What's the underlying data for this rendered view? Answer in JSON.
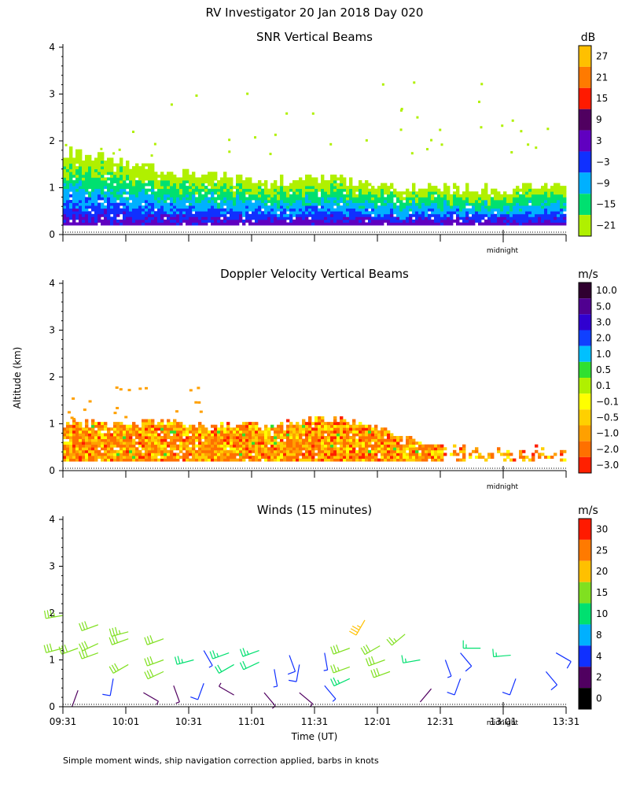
{
  "title": "RV Investigator  20 Jan 2018 Day 020",
  "ylabel": "Altitude (km)",
  "xlabel": "Time (UT)",
  "footnote": "Simple moment winds, ship navigation correction applied, barbs in knots",
  "midnight_label": "midnight",
  "x_ticks": [
    "09:31",
    "10:01",
    "10:31",
    "11:01",
    "11:31",
    "12:01",
    "12:31",
    "13:01",
    "13:31"
  ],
  "chart_data": [
    {
      "type": "heatmap",
      "title": "SNR Vertical Beams",
      "unit": "dB",
      "xlabel": "Time (UT)",
      "ylabel": "Altitude (km)",
      "ylim": [
        0,
        4
      ],
      "y_ticks": [
        0,
        1,
        2,
        3,
        4
      ],
      "colorbar": {
        "labels": [
          "27",
          "21",
          "15",
          "9",
          "3",
          "−3",
          "−9",
          "−15",
          "−21"
        ],
        "colors": [
          "#ffc000",
          "#ff7a00",
          "#ff1a00",
          "#500060",
          "#6000c0",
          "#1030ff",
          "#00b0ff",
          "#00e070",
          "#b0f000"
        ]
      },
      "profile": {
        "x": [
          0,
          0.1,
          0.2,
          0.3,
          0.4,
          0.5,
          0.6,
          0.7,
          0.8,
          0.9,
          1.0
        ],
        "top_km": [
          1.75,
          1.55,
          1.35,
          1.2,
          1.05,
          1.2,
          1.05,
          0.95,
          0.95,
          0.95,
          1.0
        ],
        "layers": [
          {
            "fraction": 0.0,
            "band": "-21"
          },
          {
            "fraction": 0.25,
            "band": "-15"
          },
          {
            "fraction": 0.45,
            "band": "-9"
          },
          {
            "fraction": 0.65,
            "band": "-3"
          },
          {
            "fraction": 0.85,
            "band": "3"
          }
        ]
      }
    },
    {
      "type": "heatmap",
      "title": "Doppler Velocity Vertical Beams",
      "unit": "m/s",
      "xlabel": "Time (UT)",
      "ylabel": "Altitude (km)",
      "ylim": [
        0,
        4
      ],
      "y_ticks": [
        0,
        1,
        2,
        3,
        4
      ],
      "colorbar": {
        "labels": [
          "10.0",
          "5.0",
          "3.0",
          "2.0",
          "1.0",
          "0.5",
          "0.1",
          "−0.1",
          "−0.5",
          "−1.0",
          "−2.0",
          "−3.0"
        ],
        "colors": [
          "#300030",
          "#500090",
          "#3000d0",
          "#1040ff",
          "#00c0ff",
          "#30e030",
          "#b0f000",
          "#ffff00",
          "#ffd000",
          "#ffa000",
          "#ff7000",
          "#ff2000"
        ]
      },
      "profile": {
        "x": [
          0,
          0.1,
          0.2,
          0.3,
          0.4,
          0.5,
          0.6,
          0.7,
          0.8,
          0.9,
          1.0
        ],
        "top_km": [
          1.0,
          1.0,
          1.0,
          0.95,
          0.9,
          1.05,
          1.0,
          0.6,
          0.45,
          0.4,
          0.45
        ]
      }
    },
    {
      "type": "scatter",
      "title": "Winds (15 minutes)",
      "unit": "m/s",
      "xlabel": "Time (UT)",
      "ylabel": "Altitude (km)",
      "ylim": [
        0,
        4
      ],
      "y_ticks": [
        0,
        1,
        2,
        3,
        4
      ],
      "colorbar": {
        "labels": [
          "30",
          "25",
          "20",
          "15",
          "10",
          "8",
          "4",
          "2",
          "0"
        ],
        "colors": [
          "#ff1a00",
          "#ff7a00",
          "#ffc000",
          "#80e020",
          "#00e070",
          "#00b0ff",
          "#1030ff",
          "#500060",
          "#000000"
        ]
      },
      "barbs": [
        {
          "t": 0.0,
          "alt": 1.95,
          "speed": 18,
          "dir": 260
        },
        {
          "t": 0.0,
          "alt": 1.25,
          "speed": 17,
          "dir": 255
        },
        {
          "t": 0.03,
          "alt": 1.25,
          "speed": 16,
          "dir": 250
        },
        {
          "t": 0.03,
          "alt": 0.35,
          "speed": 2,
          "dir": 200
        },
        {
          "t": 0.07,
          "alt": 1.75,
          "speed": 17,
          "dir": 250
        },
        {
          "t": 0.07,
          "alt": 1.35,
          "speed": 16,
          "dir": 245
        },
        {
          "t": 0.07,
          "alt": 1.15,
          "speed": 17,
          "dir": 250
        },
        {
          "t": 0.1,
          "alt": 0.6,
          "speed": 7,
          "dir": 190
        },
        {
          "t": 0.13,
          "alt": 1.6,
          "speed": 18,
          "dir": 255
        },
        {
          "t": 0.13,
          "alt": 1.45,
          "speed": 17,
          "dir": 250
        },
        {
          "t": 0.13,
          "alt": 0.9,
          "speed": 16,
          "dir": 240
        },
        {
          "t": 0.16,
          "alt": 0.3,
          "speed": 3,
          "dir": 120
        },
        {
          "t": 0.2,
          "alt": 1.45,
          "speed": 17,
          "dir": 250
        },
        {
          "t": 0.2,
          "alt": 1.0,
          "speed": 17,
          "dir": 250
        },
        {
          "t": 0.2,
          "alt": 0.75,
          "speed": 16,
          "dir": 245
        },
        {
          "t": 0.22,
          "alt": 0.45,
          "speed": 3,
          "dir": 160
        },
        {
          "t": 0.26,
          "alt": 1.0,
          "speed": 14,
          "dir": 255
        },
        {
          "t": 0.28,
          "alt": 1.2,
          "speed": 4,
          "dir": 150
        },
        {
          "t": 0.28,
          "alt": 0.5,
          "speed": 7,
          "dir": 200
        },
        {
          "t": 0.33,
          "alt": 1.15,
          "speed": 13,
          "dir": 250
        },
        {
          "t": 0.34,
          "alt": 0.9,
          "speed": 12,
          "dir": 240
        },
        {
          "t": 0.34,
          "alt": 0.25,
          "speed": 3,
          "dir": 300
        },
        {
          "t": 0.39,
          "alt": 1.2,
          "speed": 13,
          "dir": 250
        },
        {
          "t": 0.39,
          "alt": 0.95,
          "speed": 12,
          "dir": 245
        },
        {
          "t": 0.4,
          "alt": 0.3,
          "speed": 3,
          "dir": 140
        },
        {
          "t": 0.42,
          "alt": 0.8,
          "speed": 4,
          "dir": 170
        },
        {
          "t": 0.45,
          "alt": 1.1,
          "speed": 5,
          "dir": 160
        },
        {
          "t": 0.47,
          "alt": 0.9,
          "speed": 6,
          "dir": 190
        },
        {
          "t": 0.47,
          "alt": 0.3,
          "speed": 3,
          "dir": 130
        },
        {
          "t": 0.52,
          "alt": 1.15,
          "speed": 4,
          "dir": 170
        },
        {
          "t": 0.52,
          "alt": 0.45,
          "speed": 4,
          "dir": 140
        },
        {
          "t": 0.57,
          "alt": 1.25,
          "speed": 16,
          "dir": 250
        },
        {
          "t": 0.57,
          "alt": 0.85,
          "speed": 15,
          "dir": 250
        },
        {
          "t": 0.57,
          "alt": 0.6,
          "speed": 14,
          "dir": 245
        },
        {
          "t": 0.6,
          "alt": 1.85,
          "speed": 20,
          "dir": 210
        },
        {
          "t": 0.63,
          "alt": 1.3,
          "speed": 16,
          "dir": 240
        },
        {
          "t": 0.64,
          "alt": 1.0,
          "speed": 16,
          "dir": 250
        },
        {
          "t": 0.65,
          "alt": 0.75,
          "speed": 16,
          "dir": 250
        },
        {
          "t": 0.68,
          "alt": 1.55,
          "speed": 15,
          "dir": 230
        },
        {
          "t": 0.71,
          "alt": 1.0,
          "speed": 10,
          "dir": 260
        },
        {
          "t": 0.71,
          "alt": 0.1,
          "speed": 2,
          "dir": 40
        },
        {
          "t": 0.76,
          "alt": 1.0,
          "speed": 4,
          "dir": 160
        },
        {
          "t": 0.79,
          "alt": 0.6,
          "speed": 5,
          "dir": 200
        },
        {
          "t": 0.79,
          "alt": 1.15,
          "speed": 5,
          "dir": 140
        },
        {
          "t": 0.83,
          "alt": 1.25,
          "speed": 10,
          "dir": 270
        },
        {
          "t": 0.89,
          "alt": 1.1,
          "speed": 10,
          "dir": 265
        },
        {
          "t": 0.9,
          "alt": 0.6,
          "speed": 5,
          "dir": 200
        },
        {
          "t": 0.96,
          "alt": 0.75,
          "speed": 5,
          "dir": 140
        },
        {
          "t": 0.98,
          "alt": 1.15,
          "speed": 5,
          "dir": 120
        }
      ]
    }
  ]
}
